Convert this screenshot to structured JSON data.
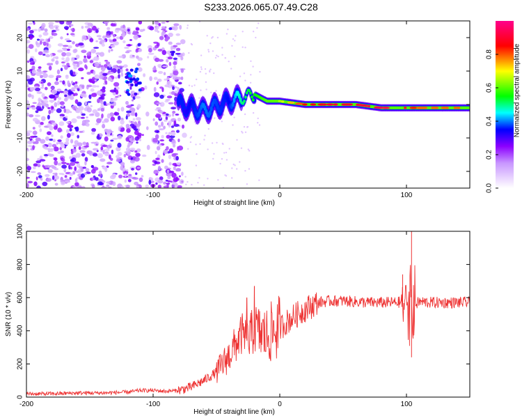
{
  "title": "S233.2026.065.07.49.C28",
  "chart_data": [
    {
      "type": "heatmap",
      "title": "",
      "xlabel": "Height of straight line (km)",
      "ylabel": "Frequency (Hz)",
      "xlim": [
        -200,
        150
      ],
      "ylim": [
        -25,
        25
      ],
      "xticks": [
        -200,
        -100,
        0,
        100
      ],
      "xtick_labels": [
        "-200",
        "-100",
        "0",
        "100"
      ],
      "yticks": [
        -20,
        -10,
        0,
        10,
        20
      ],
      "ytick_labels": [
        "-20",
        "-10",
        "0",
        "10",
        "20"
      ],
      "colorbar": {
        "label": "Normalized spectral amplitude",
        "range": [
          0,
          1
        ],
        "ticks": [
          0.0,
          0.2,
          0.4,
          0.6,
          0.8
        ],
        "tick_labels": [
          "0.0",
          "0.2",
          "0.4",
          "0.6",
          "0.8"
        ],
        "colormap": [
          "#ffffff",
          "#8800ff",
          "#0000ff",
          "#00ffff",
          "#00ff00",
          "#ffff00",
          "#ff0000",
          "#ff0088"
        ]
      },
      "ridge": {
        "x": [
          -80,
          -60,
          -40,
          -30,
          -20,
          -10,
          0,
          20,
          40,
          60,
          80,
          100,
          110,
          150
        ],
        "y": [
          0,
          -2,
          1,
          2,
          3,
          1,
          1,
          0,
          0,
          0,
          -1,
          -1,
          -1,
          -1
        ],
        "amplitude": [
          0.3,
          0.4,
          0.35,
          0.5,
          0.55,
          0.6,
          0.65,
          0.85,
          0.9,
          0.9,
          0.95,
          0.9,
          0.8,
          0.8
        ]
      }
    },
    {
      "type": "line",
      "title": "",
      "xlabel": "Height of straight line (km)",
      "ylabel": "SNR (10 * v/v)",
      "xlim": [
        -200,
        150
      ],
      "ylim": [
        0,
        1000
      ],
      "xticks": [
        -200,
        -100,
        0,
        100
      ],
      "xtick_labels": [
        "-200",
        "-100",
        "0",
        "100"
      ],
      "yticks": [
        0,
        200,
        400,
        600,
        800,
        1000
      ],
      "ytick_labels": [
        "0",
        "200",
        "400",
        "600",
        "800",
        "1000"
      ],
      "color": "#ee3333",
      "series": [
        {
          "name": "SNR",
          "x": [
            -200,
            -180,
            -160,
            -140,
            -120,
            -110,
            -100,
            -90,
            -80,
            -70,
            -60,
            -50,
            -40,
            -30,
            -25,
            -20,
            -15,
            -10,
            -5,
            0,
            10,
            20,
            30,
            40,
            50,
            60,
            70,
            80,
            90,
            100,
            104,
            110,
            120,
            130,
            140,
            150
          ],
          "y": [
            20,
            20,
            25,
            25,
            30,
            40,
            40,
            35,
            40,
            60,
            100,
            150,
            250,
            380,
            330,
            420,
            380,
            370,
            400,
            420,
            480,
            530,
            570,
            580,
            580,
            575,
            570,
            570,
            570,
            575,
            540,
            575,
            570,
            570,
            570,
            570
          ]
        }
      ],
      "spikes": [
        {
          "x": -26,
          "y": 600
        },
        {
          "x": -20,
          "y": 670
        },
        {
          "x": 97,
          "y": 740
        },
        {
          "x": 104,
          "y": 1000
        },
        {
          "x": 104,
          "y": 240
        }
      ]
    }
  ]
}
